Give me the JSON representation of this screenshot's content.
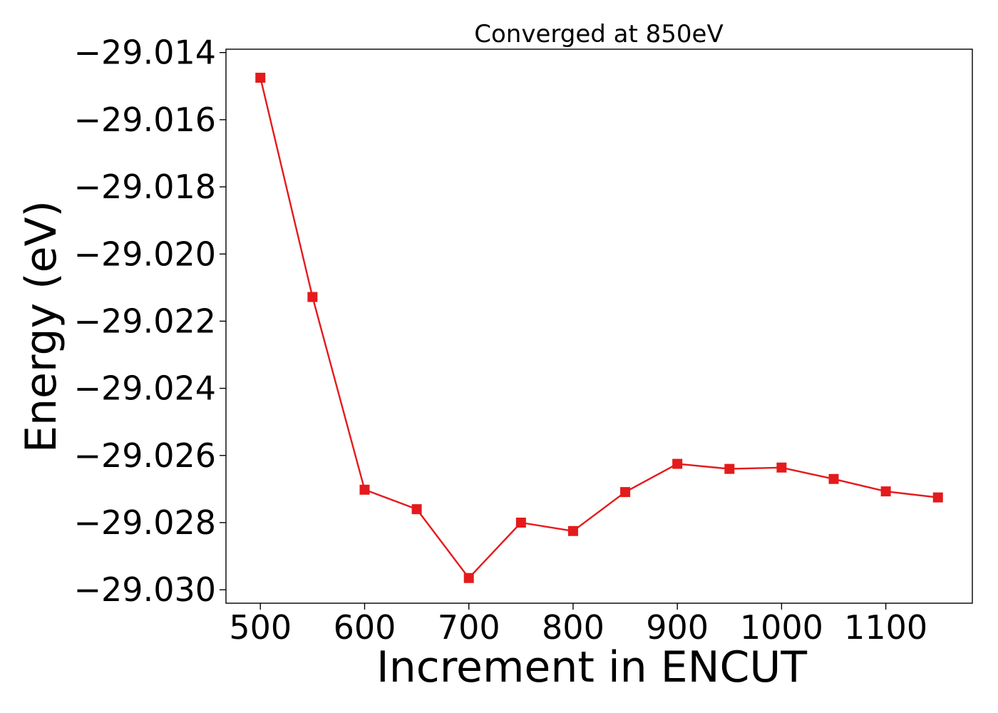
{
  "chart_data": {
    "type": "line",
    "title": "Converged at 850eV",
    "xlabel": "Increment in ENCUT",
    "ylabel": "Energy (eV)",
    "x": [
      500,
      550,
      600,
      650,
      700,
      750,
      800,
      850,
      900,
      950,
      1000,
      1050,
      1100,
      1150
    ],
    "series": [
      {
        "values": [
          -29.01475,
          -29.02128,
          -29.02702,
          -29.0276,
          -29.02965,
          -29.028,
          -29.02825,
          -29.02709,
          -29.02625,
          -29.0264,
          -29.02636,
          -29.0267,
          -29.02707,
          -29.02725
        ],
        "color": "#e41a1c",
        "marker": "square"
      }
    ],
    "xlim": [
      467,
      1183
    ],
    "ylim": [
      -29.0304,
      -29.0139
    ],
    "xticks": [
      500,
      600,
      700,
      800,
      900,
      1000,
      1100
    ],
    "xtick_labels": [
      "500",
      "600",
      "700",
      "800",
      "900",
      "1000",
      "1100"
    ],
    "yticks": [
      -29.014,
      -29.016,
      -29.018,
      -29.02,
      -29.022,
      -29.024,
      -29.026,
      -29.028,
      -29.03
    ],
    "ytick_labels": [
      "−29.014",
      "−29.016",
      "−29.018",
      "−29.020",
      "−29.022",
      "−29.024",
      "−29.026",
      "−29.028",
      "−29.030"
    ],
    "grid": false,
    "legend": "none"
  }
}
